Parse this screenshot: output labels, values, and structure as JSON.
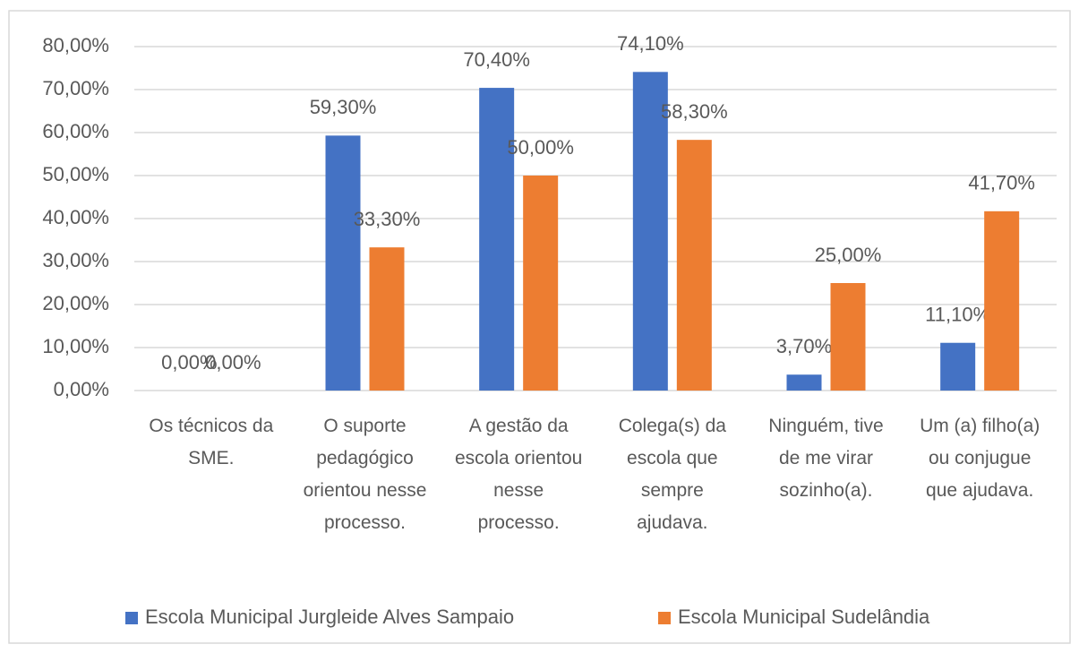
{
  "chart_data": {
    "type": "bar",
    "categories": [
      "Os técnicos da SME.",
      "O suporte pedagógico orientou nesse processo.",
      "A gestão da escola orientou nesse processo.",
      "Colega(s) da escola que sempre ajudava.",
      "Ninguém, tive de me virar sozinho(a).",
      "Um (a) filho(a) ou conjugue que ajudava."
    ],
    "series": [
      {
        "name": "Escola Municipal Jurgleide Alves Sampaio",
        "color": "#4472c4",
        "values": [
          0,
          59.3,
          70.4,
          74.1,
          3.7,
          11.1
        ],
        "value_labels": [
          "0,00%",
          "59,30%",
          "70,40%",
          "74,10%",
          "3,70%",
          "11,10%"
        ]
      },
      {
        "name": "Escola Municipal Sudelândia",
        "color": "#ed7d31",
        "values": [
          0,
          33.3,
          50,
          58.3,
          25,
          41.7
        ],
        "value_labels": [
          "0,00%",
          "33,30%",
          "50,00%",
          "58,30%",
          "25,00%",
          "41,70%"
        ]
      }
    ],
    "ylim": [
      0,
      80
    ],
    "yticks": [
      {
        "value": 0,
        "label": "0,00%"
      },
      {
        "value": 10,
        "label": "10,00%"
      },
      {
        "value": 20,
        "label": "20,00%"
      },
      {
        "value": 30,
        "label": "30,00%"
      },
      {
        "value": 40,
        "label": "40,00%"
      },
      {
        "value": 50,
        "label": "50,00%"
      },
      {
        "value": 60,
        "label": "60,00%"
      },
      {
        "value": 70,
        "label": "70,00%"
      },
      {
        "value": 80,
        "label": "80,00%"
      }
    ],
    "grid": true,
    "legend": "bottom"
  }
}
